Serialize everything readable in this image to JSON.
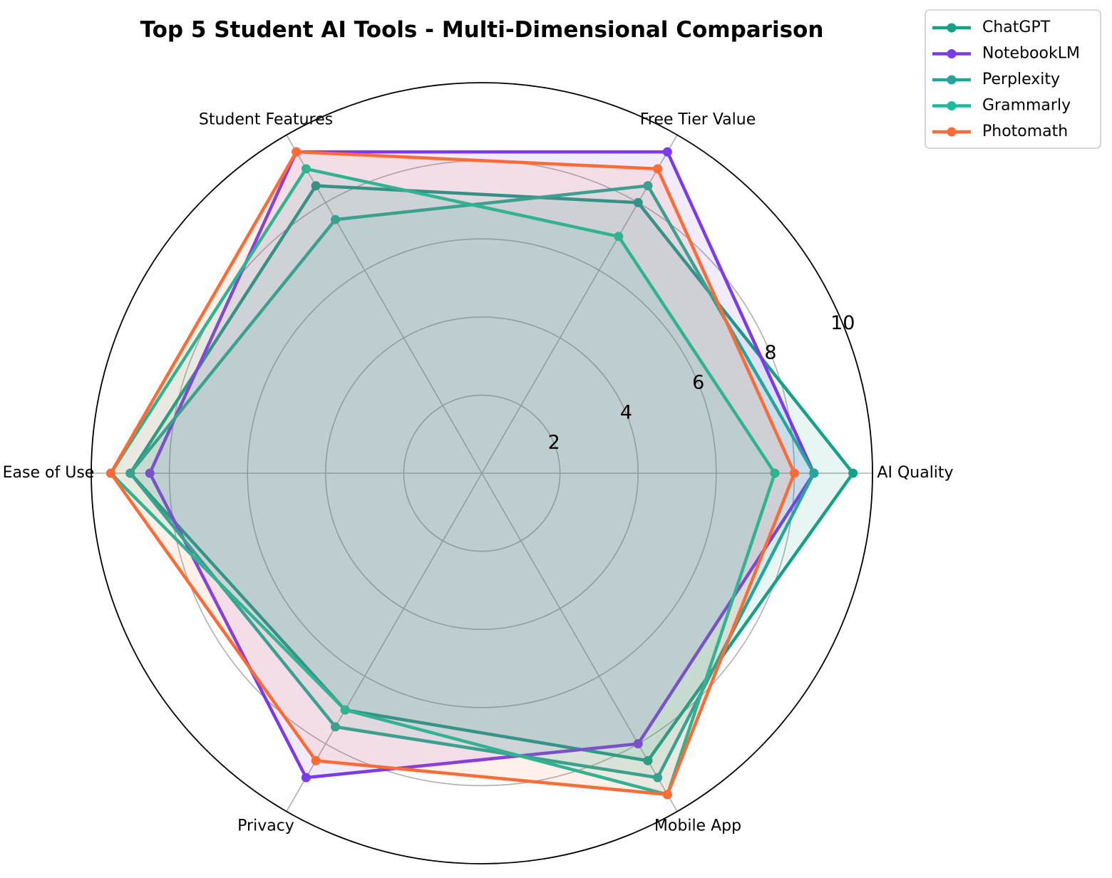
{
  "chart_data": {
    "type": "radar",
    "title": "Top 5 Student AI Tools - Multi-Dimensional Comparison",
    "categories": [
      "AI Quality",
      "Free Tier Value",
      "Student Features",
      "Ease of Use",
      "Privacy",
      "Mobile App"
    ],
    "rlim": [
      0,
      10
    ],
    "rticks": [
      2,
      4,
      6,
      8,
      10
    ],
    "grid": true,
    "legend_position": "top-right",
    "series": [
      {
        "name": "ChatGPT",
        "color": "#16a085",
        "values": [
          9.5,
          8,
          8.5,
          9,
          7,
          8.5
        ]
      },
      {
        "name": "NotebookLM",
        "color": "#7c3aed",
        "values": [
          8.5,
          9.5,
          9.5,
          8.5,
          9,
          8
        ]
      },
      {
        "name": "Perplexity",
        "color": "#26a69a",
        "values": [
          8.5,
          8.5,
          7.5,
          9,
          7.5,
          9
        ]
      },
      {
        "name": "Grammarly",
        "color": "#1abc9c",
        "values": [
          7.5,
          7,
          9,
          9.5,
          7,
          9.5
        ]
      },
      {
        "name": "Photomath",
        "color": "#ff6b35",
        "values": [
          8,
          9,
          9.5,
          9.5,
          8.5,
          9.5
        ]
      }
    ]
  }
}
